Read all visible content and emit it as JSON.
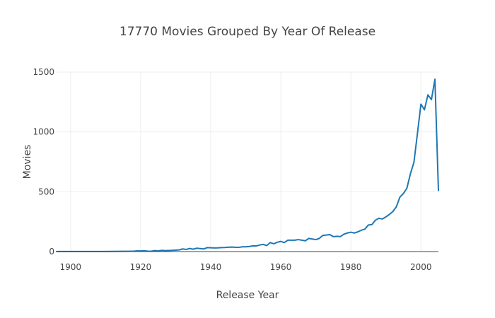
{
  "chart_data": {
    "type": "line",
    "title": "17770 Movies Grouped By Year Of Release",
    "xlabel": "Release Year",
    "ylabel": "Movies",
    "xlim": [
      1896,
      2005
    ],
    "ylim": [
      0,
      1500
    ],
    "grid": true,
    "x_ticks": [
      1900,
      1920,
      1940,
      1960,
      1980,
      2000
    ],
    "y_ticks": [
      0,
      500,
      1000,
      1500
    ],
    "series": [
      {
        "color": "#1f77b4",
        "x": [
          1896,
          1900,
          1905,
          1910,
          1915,
          1916,
          1917,
          1918,
          1919,
          1920,
          1921,
          1922,
          1923,
          1924,
          1925,
          1926,
          1927,
          1928,
          1929,
          1930,
          1931,
          1932,
          1933,
          1934,
          1935,
          1936,
          1937,
          1938,
          1939,
          1940,
          1941,
          1942,
          1943,
          1944,
          1945,
          1946,
          1947,
          1948,
          1949,
          1950,
          1951,
          1952,
          1953,
          1954,
          1955,
          1956,
          1957,
          1958,
          1959,
          1960,
          1961,
          1962,
          1963,
          1964,
          1965,
          1966,
          1967,
          1968,
          1969,
          1970,
          1971,
          1972,
          1973,
          1974,
          1975,
          1976,
          1977,
          1978,
          1979,
          1980,
          1981,
          1982,
          1983,
          1984,
          1985,
          1986,
          1987,
          1988,
          1989,
          1990,
          1991,
          1992,
          1993,
          1994,
          1995,
          1996,
          1997,
          1998,
          1999,
          2000,
          2001,
          2002,
          2003,
          2004,
          2005
        ],
        "y": [
          1,
          1,
          1,
          1,
          2,
          2,
          3,
          3,
          6,
          5,
          7,
          4,
          3,
          8,
          6,
          10,
          8,
          9,
          10,
          12,
          14,
          22,
          18,
          26,
          20,
          28,
          25,
          22,
          33,
          32,
          30,
          31,
          33,
          34,
          36,
          38,
          36,
          35,
          40,
          40,
          42,
          48,
          47,
          55,
          60,
          50,
          75,
          65,
          78,
          85,
          75,
          95,
          95,
          95,
          100,
          95,
          90,
          110,
          105,
          100,
          110,
          135,
          138,
          142,
          125,
          128,
          125,
          145,
          155,
          162,
          155,
          165,
          178,
          188,
          222,
          225,
          262,
          278,
          272,
          290,
          310,
          335,
          375,
          455,
          485,
          530,
          650,
          745,
          985,
          1232,
          1185,
          1310,
          1270,
          1440,
          510
        ]
      }
    ]
  }
}
